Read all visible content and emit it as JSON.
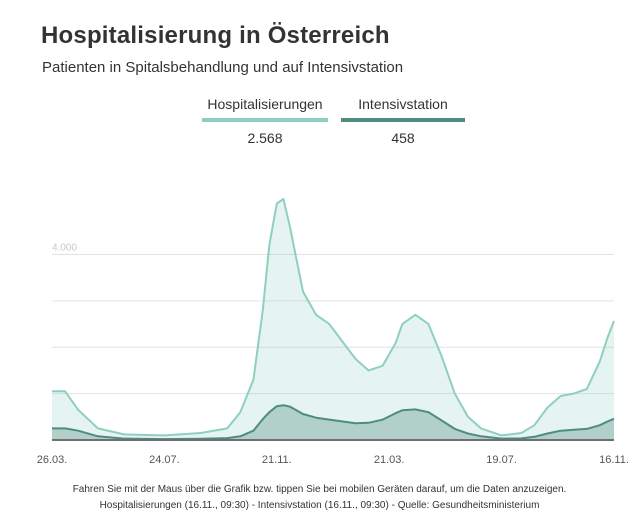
{
  "header": {
    "title": "Hospitalisierung in Österreich",
    "subtitle": "Patienten in Spitalsbehandlung und auf Intensivstation"
  },
  "legend": [
    {
      "label": "Hospitalisierungen",
      "value": "2.568",
      "color": "#8ecfc1"
    },
    {
      "label": "Intensivstation",
      "value": "458",
      "color": "#4e8c80"
    }
  ],
  "footer": {
    "line1": "Fahren Sie mit der Maus über die Grafik bzw. tippen Sie bei mobilen Geräten darauf, um die Daten anzuzeigen.",
    "line2": "Hospitalisierungen (16.11., 09:30) - Intensivstation (16.11., 09:30) - Quelle: Gesundheitsministerium"
  },
  "chart_data": {
    "type": "area",
    "title": "Hospitalisierung in Österreich",
    "subtitle": "Patienten in Spitalsbehandlung und auf Intensivstation",
    "x_tick_labels": [
      "26.03.",
      "24.07.",
      "21.11.",
      "21.03.",
      "19.07.",
      "16.11."
    ],
    "y_tick_labels": [
      "4.000"
    ],
    "ylim": [
      0,
      5500
    ],
    "grid": true,
    "x": [
      "2020-03-26",
      "2020-04-09",
      "2020-04-23",
      "2020-05-14",
      "2020-06-11",
      "2020-07-24",
      "2020-09-01",
      "2020-09-29",
      "2020-10-13",
      "2020-10-27",
      "2020-11-06",
      "2020-11-13",
      "2020-11-21",
      "2020-11-28",
      "2020-12-05",
      "2020-12-19",
      "2021-01-02",
      "2021-01-16",
      "2021-02-13",
      "2021-02-27",
      "2021-03-14",
      "2021-03-28",
      "2021-04-04",
      "2021-04-18",
      "2021-05-02",
      "2021-05-16",
      "2021-05-30",
      "2021-06-13",
      "2021-06-27",
      "2021-07-19",
      "2021-08-09",
      "2021-08-23",
      "2021-09-06",
      "2021-09-20",
      "2021-10-04",
      "2021-10-18",
      "2021-11-01",
      "2021-11-09",
      "2021-11-16"
    ],
    "series": [
      {
        "name": "Hospitalisierungen",
        "color": "#8ecfc1",
        "values": [
          1050,
          1050,
          650,
          250,
          120,
          100,
          150,
          250,
          600,
          1300,
          2800,
          4200,
          5100,
          5200,
          4600,
          3200,
          2700,
          2500,
          1750,
          1500,
          1600,
          2100,
          2500,
          2700,
          2500,
          1800,
          1000,
          500,
          250,
          100,
          150,
          320,
          700,
          950,
          1000,
          1100,
          1700,
          2200,
          2568
        ]
      },
      {
        "name": "Intensivstation",
        "color": "#4e8c80",
        "values": [
          250,
          250,
          200,
          80,
          30,
          20,
          25,
          40,
          80,
          200,
          450,
          600,
          730,
          750,
          720,
          560,
          480,
          440,
          360,
          370,
          440,
          580,
          640,
          660,
          600,
          420,
          240,
          140,
          80,
          30,
          35,
          70,
          140,
          200,
          220,
          240,
          320,
          400,
          458
        ]
      }
    ]
  }
}
